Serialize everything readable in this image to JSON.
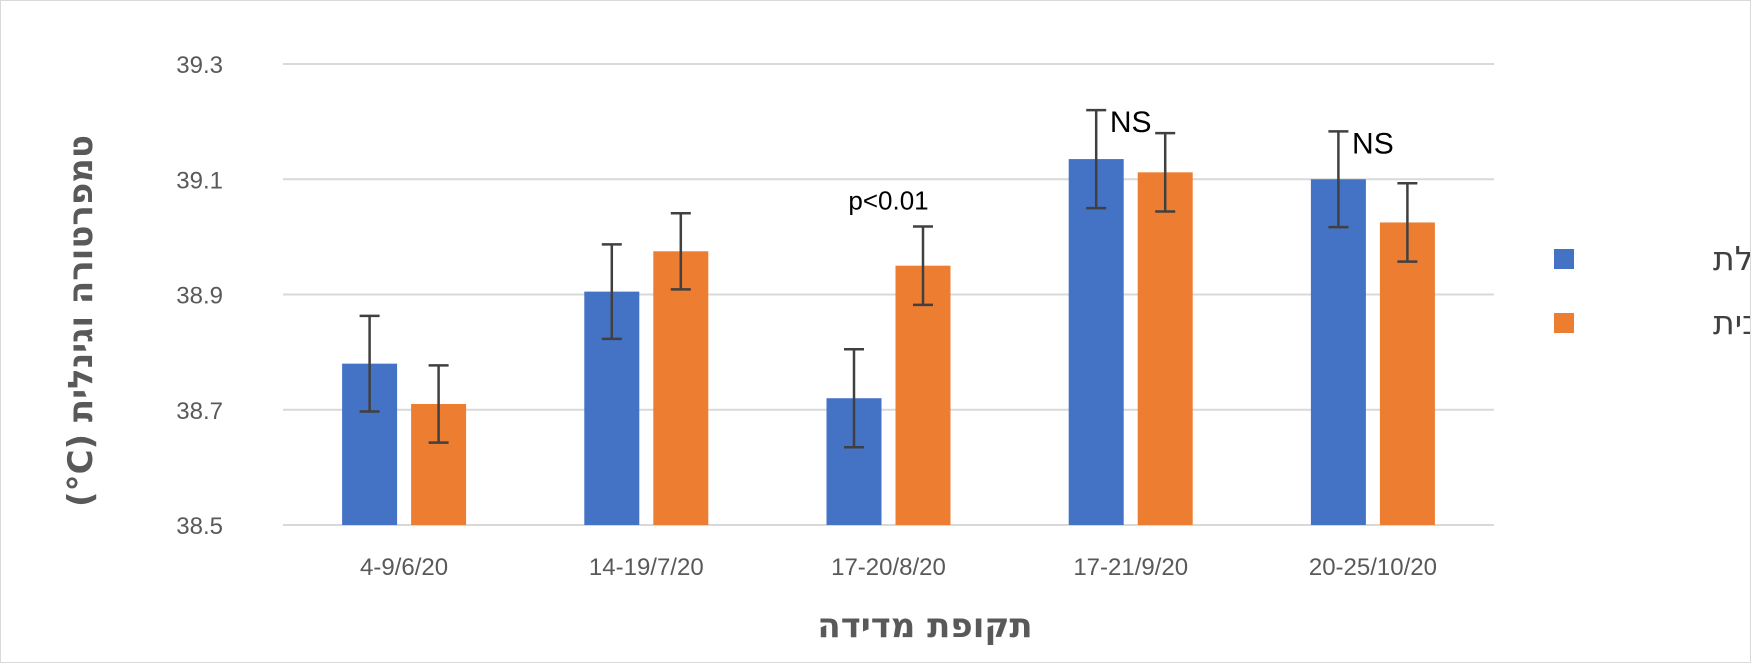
{
  "chart_data": {
    "type": "bar",
    "title": "",
    "xlabel": "תקופת מדידה",
    "ylabel": "טמפרטורה וגינלית (C°)",
    "categories": [
      "4-9/6/20",
      "14-19/7/20",
      "17-20/8/20",
      "17-21/9/20",
      "20-25/10/20"
    ],
    "series": [
      {
        "name": "כוללת",
        "color": "#4472C4",
        "values": [
          38.78,
          38.905,
          38.72,
          39.135,
          39.1
        ],
        "error": [
          0.083,
          0.082,
          0.085,
          0.085,
          0.083
        ]
      },
      {
        "name": "מרחבית",
        "color": "#ED7D31",
        "values": [
          38.71,
          38.975,
          38.95,
          39.112,
          39.025
        ],
        "error": [
          0.067,
          0.066,
          0.068,
          0.068,
          0.068
        ]
      }
    ],
    "ylim": [
      38.5,
      39.3
    ],
    "yticks": [
      "38.5",
      "38.7",
      "38.9",
      "39.1",
      "39.3"
    ],
    "grid": true,
    "legend_position": "right",
    "annotations": [
      {
        "text": "p<0.01",
        "category_index": 2
      },
      {
        "text": "NS",
        "category_index": 3
      },
      {
        "text": "NS",
        "category_index": 4
      }
    ]
  }
}
